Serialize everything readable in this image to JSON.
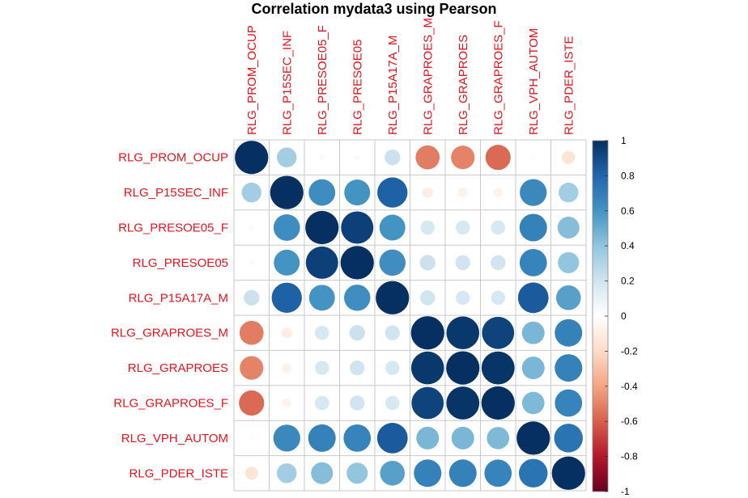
{
  "chart_data": {
    "type": "heatmap",
    "title": "Correlation mydata3 using Pearson",
    "labels": [
      "RLG_PROM_OCUP",
      "RLG_P15SEC_INF",
      "RLG_PRESOE05_F",
      "RLG_PRESOE05",
      "RLG_P15A17A_M",
      "RLG_GRAPROES_M",
      "RLG_GRAPROES",
      "RLG_GRAPROES_F",
      "RLG_VPH_AUTOM",
      "RLG_PDER_ISTE"
    ],
    "matrix": [
      [
        1.0,
        0.35,
        0.03,
        0.03,
        0.22,
        -0.52,
        -0.5,
        -0.57,
        0.02,
        -0.15
      ],
      [
        0.35,
        1.0,
        0.63,
        0.6,
        0.82,
        -0.1,
        -0.08,
        -0.07,
        0.65,
        0.35
      ],
      [
        0.03,
        0.63,
        1.0,
        0.94,
        0.6,
        0.18,
        0.18,
        0.18,
        0.68,
        0.43
      ],
      [
        0.03,
        0.6,
        0.94,
        1.0,
        0.62,
        0.22,
        0.2,
        0.2,
        0.67,
        0.4
      ],
      [
        0.22,
        0.82,
        0.6,
        0.62,
        1.0,
        0.2,
        0.18,
        0.18,
        0.84,
        0.55
      ],
      [
        -0.52,
        -0.1,
        0.18,
        0.22,
        0.2,
        1.0,
        0.97,
        0.93,
        0.46,
        0.68
      ],
      [
        -0.5,
        -0.08,
        0.18,
        0.2,
        0.18,
        0.97,
        1.0,
        0.98,
        0.46,
        0.68
      ],
      [
        -0.57,
        -0.07,
        0.18,
        0.2,
        0.18,
        0.93,
        0.98,
        1.0,
        0.45,
        0.67
      ],
      [
        0.02,
        0.65,
        0.68,
        0.67,
        0.84,
        0.46,
        0.46,
        0.45,
        1.0,
        0.74
      ],
      [
        -0.15,
        0.35,
        0.43,
        0.4,
        0.55,
        0.68,
        0.68,
        0.67,
        0.74,
        1.0
      ]
    ],
    "colorbar": {
      "ticks": [
        "1",
        "0.8",
        "0.6",
        "0.4",
        "0.2",
        "0",
        "-0.2",
        "-0.4",
        "-0.6",
        "-0.8",
        "-1"
      ],
      "range": [
        -1,
        1
      ],
      "colors": [
        "#67001F",
        "#B2182B",
        "#D6604D",
        "#F4A582",
        "#FDDBC7",
        "#FFFFFF",
        "#D1E5F0",
        "#92C5DE",
        "#4393C3",
        "#2166AC",
        "#053061"
      ]
    }
  }
}
